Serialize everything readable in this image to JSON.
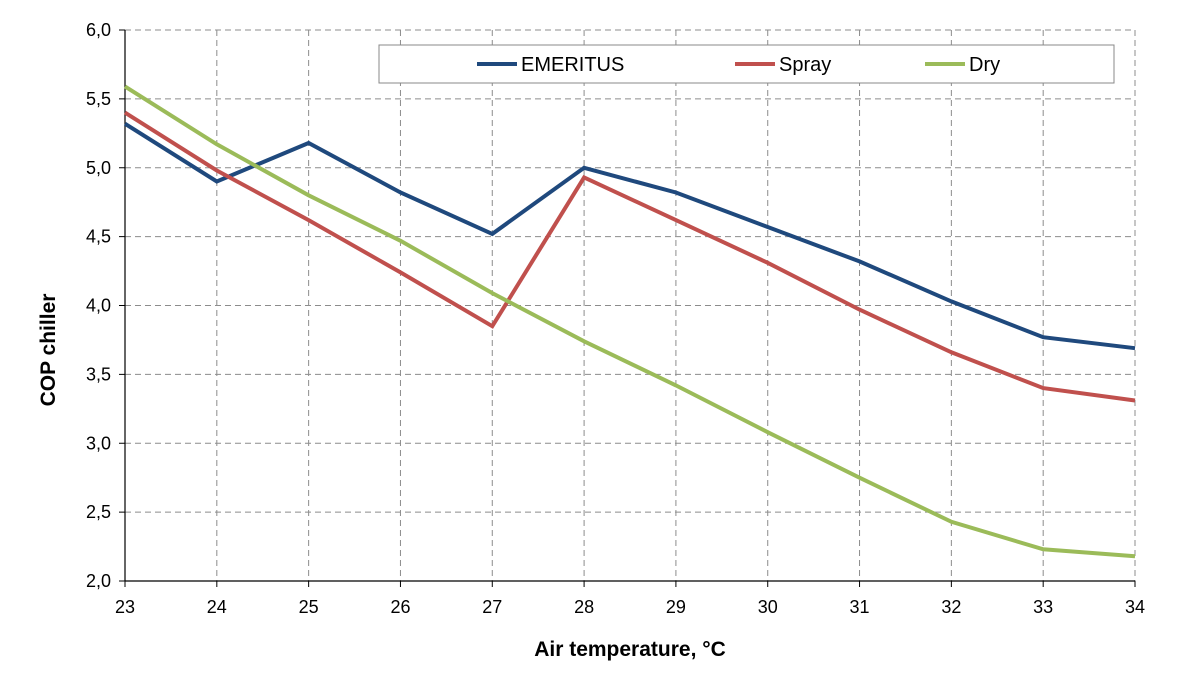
{
  "chart_data": {
    "type": "line",
    "title": "",
    "xlabel": "Air temperature, °C",
    "ylabel": "COP chiller",
    "x": [
      23,
      24,
      25,
      26,
      27,
      28,
      29,
      30,
      31,
      32,
      33,
      34
    ],
    "x_tick_labels": [
      "23",
      "24",
      "25",
      "26",
      "27",
      "28",
      "29",
      "30",
      "31",
      "32",
      "33",
      "34"
    ],
    "xlim": [
      23,
      34
    ],
    "ylim": [
      2.0,
      6.0
    ],
    "y_ticks": [
      2.0,
      2.5,
      3.0,
      3.5,
      4.0,
      4.5,
      5.0,
      5.5,
      6.0
    ],
    "y_tick_labels": [
      "2,0",
      "2,5",
      "3,0",
      "3,5",
      "4,0",
      "4,5",
      "5,0",
      "5,5",
      "6,0"
    ],
    "grid": true,
    "grid_style": "dashed",
    "legend_position": "top-right",
    "series": [
      {
        "name": "EMERITUS",
        "color": "#1F497D",
        "values": [
          5.32,
          4.9,
          5.18,
          4.82,
          4.52,
          5.0,
          4.82,
          4.57,
          4.32,
          4.03,
          3.77,
          3.69
        ]
      },
      {
        "name": "Spray",
        "color": "#C0504D",
        "values": [
          5.4,
          4.98,
          4.62,
          4.24,
          3.85,
          4.93,
          4.62,
          4.31,
          3.97,
          3.66,
          3.4,
          3.31
        ]
      },
      {
        "name": "Dry",
        "color": "#9BBB59",
        "values": [
          5.59,
          5.17,
          4.8,
          4.47,
          4.09,
          3.74,
          3.42,
          3.08,
          2.75,
          2.43,
          2.23,
          2.18
        ]
      }
    ]
  }
}
